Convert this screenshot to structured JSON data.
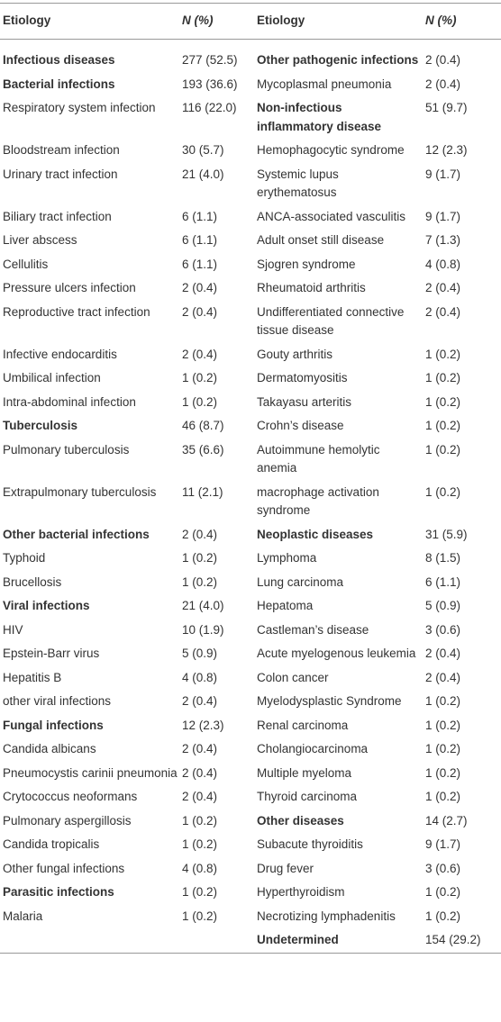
{
  "table": {
    "header": [
      "Etiology",
      "N (%)",
      "Etiology",
      "N (%)"
    ],
    "rows": [
      {
        "cells": [
          "Infectious diseases",
          "277 (52.5)",
          "Other pathogenic infections",
          "2 (0.4)"
        ],
        "bold": [
          true,
          true
        ]
      },
      {
        "cells": [
          "Bacterial infections",
          "193 (36.6)",
          "Mycoplasmal pneumonia",
          "2 (0.4)"
        ],
        "bold": [
          true,
          false
        ]
      },
      {
        "cells": [
          "Respiratory system infection",
          "116 (22.0)",
          "Non-infectious inflammatory disease",
          "51 (9.7)"
        ],
        "bold": [
          false,
          true
        ]
      },
      {
        "cells": [
          "Bloodstream infection",
          "30 (5.7)",
          "Hemophagocytic syndrome",
          "12 (2.3)"
        ],
        "bold": [
          false,
          false
        ]
      },
      {
        "cells": [
          "Urinary tract infection",
          "21 (4.0)",
          "Systemic lupus erythematosus",
          "9 (1.7)"
        ],
        "bold": [
          false,
          false
        ]
      },
      {
        "cells": [
          "Biliary tract infection",
          "6 (1.1)",
          "ANCA-associated vasculitis",
          "9 (1.7)"
        ],
        "bold": [
          false,
          false
        ]
      },
      {
        "cells": [
          "Liver abscess",
          "6 (1.1)",
          "Adult onset still disease",
          "7 (1.3)"
        ],
        "bold": [
          false,
          false
        ]
      },
      {
        "cells": [
          "Cellulitis",
          "6 (1.1)",
          "Sjogren syndrome",
          "4 (0.8)"
        ],
        "bold": [
          false,
          false
        ]
      },
      {
        "cells": [
          "Pressure ulcers infection",
          "2 (0.4)",
          "Rheumatoid arthritis",
          "2 (0.4)"
        ],
        "bold": [
          false,
          false
        ]
      },
      {
        "cells": [
          "Reproductive tract infection",
          "2 (0.4)",
          "Undifferentiated connective tissue disease",
          "2 (0.4)"
        ],
        "bold": [
          false,
          false
        ]
      },
      {
        "cells": [
          "Infective endocarditis",
          "2 (0.4)",
          "Gouty arthritis",
          "1 (0.2)"
        ],
        "bold": [
          false,
          false
        ]
      },
      {
        "cells": [
          "Umbilical infection",
          "1 (0.2)",
          "Dermatomyositis",
          "1 (0.2)"
        ],
        "bold": [
          false,
          false
        ]
      },
      {
        "cells": [
          "Intra-abdominal infection",
          "1 (0.2)",
          "Takayasu arteritis",
          "1 (0.2)"
        ],
        "bold": [
          false,
          false
        ]
      },
      {
        "cells": [
          "Tuberculosis",
          "46 (8.7)",
          "Crohn’s disease",
          "1 (0.2)"
        ],
        "bold": [
          true,
          false
        ]
      },
      {
        "cells": [
          "Pulmonary tuberculosis",
          "35 (6.6)",
          "Autoimmune hemolytic anemia",
          "1 (0.2)"
        ],
        "bold": [
          false,
          false
        ]
      },
      {
        "cells": [
          "Extrapulmonary tuberculosis",
          "11 (2.1)",
          "macrophage activation syndrome",
          "1 (0.2)"
        ],
        "bold": [
          false,
          false
        ]
      },
      {
        "cells": [
          "Other bacterial infections",
          "2 (0.4)",
          "Neoplastic diseases",
          "31 (5.9)"
        ],
        "bold": [
          true,
          true
        ]
      },
      {
        "cells": [
          "Typhoid",
          "1 (0.2)",
          "Lymphoma",
          "8 (1.5)"
        ],
        "bold": [
          false,
          false
        ]
      },
      {
        "cells": [
          "Brucellosis",
          "1 (0.2)",
          "Lung carcinoma",
          "6 (1.1)"
        ],
        "bold": [
          false,
          false
        ]
      },
      {
        "cells": [
          "Viral infections",
          "21 (4.0)",
          "Hepatoma",
          "5 (0.9)"
        ],
        "bold": [
          true,
          false
        ]
      },
      {
        "cells": [
          "HIV",
          "10 (1.9)",
          "Castleman’s disease",
          "3 (0.6)"
        ],
        "bold": [
          false,
          false
        ]
      },
      {
        "cells": [
          "Epstein-Barr virus",
          "5 (0.9)",
          "Acute myelogenous leukemia",
          "2 (0.4)"
        ],
        "bold": [
          false,
          false
        ]
      },
      {
        "cells": [
          "Hepatitis B",
          "4 (0.8)",
          "Colon cancer",
          "2 (0.4)"
        ],
        "bold": [
          false,
          false
        ]
      },
      {
        "cells": [
          "other viral infections",
          "2 (0.4)",
          "Myelodysplastic Syndrome",
          "1 (0.2)"
        ],
        "bold": [
          false,
          false
        ]
      },
      {
        "cells": [
          "Fungal infections",
          "12 (2.3)",
          "Renal carcinoma",
          "1 (0.2)"
        ],
        "bold": [
          true,
          false
        ]
      },
      {
        "cells": [
          "Candida albicans",
          "2 (0.4)",
          "Cholangiocarcinoma",
          "1 (0.2)"
        ],
        "bold": [
          false,
          false
        ]
      },
      {
        "cells": [
          "Pneumocystis carinii pneumonia",
          "2 (0.4)",
          "Multiple myeloma",
          "1 (0.2)"
        ],
        "bold": [
          false,
          false
        ]
      },
      {
        "cells": [
          "Crytococcus neoformans",
          "2 (0.4)",
          "Thyroid carcinoma",
          "1 (0.2)"
        ],
        "bold": [
          false,
          false
        ]
      },
      {
        "cells": [
          "Pulmonary aspergillosis",
          "1 (0.2)",
          "Other diseases",
          "14 (2.7)"
        ],
        "bold": [
          false,
          true
        ]
      },
      {
        "cells": [
          "Candida tropicalis",
          "1 (0.2)",
          "Subacute thyroiditis",
          "9 (1.7)"
        ],
        "bold": [
          false,
          false
        ]
      },
      {
        "cells": [
          "Other fungal infections",
          "4 (0.8)",
          "Drug fever",
          "3 (0.6)"
        ],
        "bold": [
          false,
          false
        ]
      },
      {
        "cells": [
          "Parasitic infections",
          "1 (0.2)",
          "Hyperthyroidism",
          "1 (0.2)"
        ],
        "bold": [
          true,
          false
        ]
      },
      {
        "cells": [
          "Malaria",
          "1 (0.2)",
          "Necrotizing lymphadenitis",
          "1 (0.2)"
        ],
        "bold": [
          false,
          false
        ]
      },
      {
        "cells": [
          null,
          null,
          "Undetermined",
          "154 (29.2)"
        ],
        "bold": [
          false,
          true
        ]
      }
    ]
  }
}
